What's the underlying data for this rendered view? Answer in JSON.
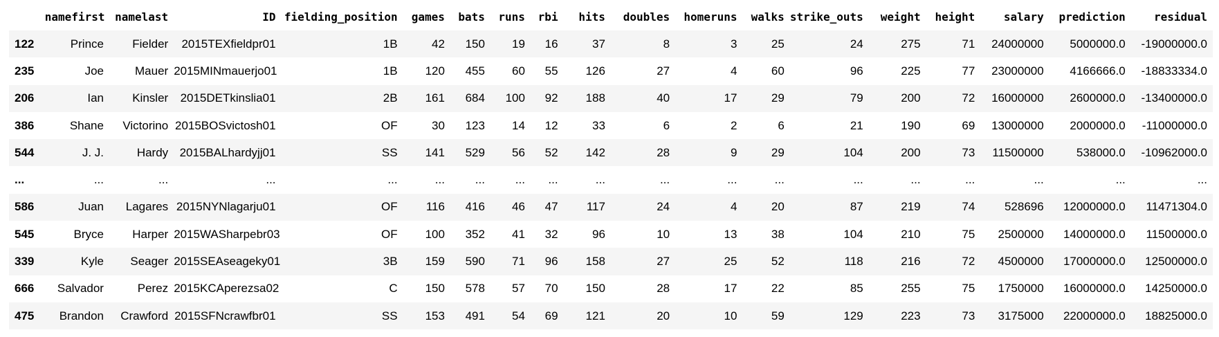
{
  "table": {
    "columns": [
      "",
      "namefirst",
      "namelast",
      "ID",
      "fielding_position",
      "games",
      "bats",
      "runs",
      "rbi",
      "hits",
      "doubles",
      "homeruns",
      "walks",
      "strike_outs",
      "weight",
      "height",
      "salary",
      "prediction",
      "residual"
    ],
    "rows": [
      [
        "122",
        "Prince",
        "Fielder",
        "2015TEXfieldpr01",
        "1B",
        "42",
        "150",
        "19",
        "16",
        "37",
        "8",
        "3",
        "25",
        "24",
        "275",
        "71",
        "24000000",
        "5000000.0",
        "-19000000.0"
      ],
      [
        "235",
        "Joe",
        "Mauer",
        "2015MINmauerjo01",
        "1B",
        "120",
        "455",
        "60",
        "55",
        "126",
        "27",
        "4",
        "60",
        "96",
        "225",
        "77",
        "23000000",
        "4166666.0",
        "-18833334.0"
      ],
      [
        "206",
        "Ian",
        "Kinsler",
        "2015DETkinslia01",
        "2B",
        "161",
        "684",
        "100",
        "92",
        "188",
        "40",
        "17",
        "29",
        "79",
        "200",
        "72",
        "16000000",
        "2600000.0",
        "-13400000.0"
      ],
      [
        "386",
        "Shane",
        "Victorino",
        "2015BOSvictosh01",
        "OF",
        "30",
        "123",
        "14",
        "12",
        "33",
        "6",
        "2",
        "6",
        "21",
        "190",
        "69",
        "13000000",
        "2000000.0",
        "-11000000.0"
      ],
      [
        "544",
        "J. J.",
        "Hardy",
        "2015BALhardyjj01",
        "SS",
        "141",
        "529",
        "56",
        "52",
        "142",
        "28",
        "9",
        "29",
        "104",
        "200",
        "73",
        "11500000",
        "538000.0",
        "-10962000.0"
      ],
      [
        "...",
        "...",
        "...",
        "...",
        "...",
        "...",
        "...",
        "...",
        "...",
        "...",
        "...",
        "...",
        "...",
        "...",
        "...",
        "...",
        "...",
        "...",
        "..."
      ],
      [
        "586",
        "Juan",
        "Lagares",
        "2015NYNlagarju01",
        "OF",
        "116",
        "416",
        "46",
        "47",
        "117",
        "24",
        "4",
        "20",
        "87",
        "219",
        "74",
        "528696",
        "12000000.0",
        "11471304.0"
      ],
      [
        "545",
        "Bryce",
        "Harper",
        "2015WASharpebr03",
        "OF",
        "100",
        "352",
        "41",
        "32",
        "96",
        "10",
        "13",
        "38",
        "104",
        "210",
        "75",
        "2500000",
        "14000000.0",
        "11500000.0"
      ],
      [
        "339",
        "Kyle",
        "Seager",
        "2015SEAseageky01",
        "3B",
        "159",
        "590",
        "71",
        "96",
        "158",
        "27",
        "25",
        "52",
        "118",
        "216",
        "72",
        "4500000",
        "17000000.0",
        "12500000.0"
      ],
      [
        "666",
        "Salvador",
        "Perez",
        "2015KCAperezsa02",
        "C",
        "150",
        "578",
        "57",
        "70",
        "150",
        "28",
        "17",
        "22",
        "85",
        "255",
        "75",
        "1750000",
        "16000000.0",
        "14250000.0"
      ],
      [
        "475",
        "Brandon",
        "Crawford",
        "2015SFNcrawfbr01",
        "SS",
        "153",
        "491",
        "54",
        "69",
        "121",
        "20",
        "10",
        "59",
        "129",
        "223",
        "73",
        "3175000",
        "22000000.0",
        "18825000.0"
      ]
    ]
  }
}
